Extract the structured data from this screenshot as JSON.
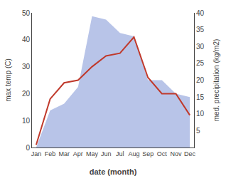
{
  "chart_data": {
    "type": "line",
    "xlabel": "date (month)",
    "ylabel": "max temp (C)",
    "y2label": "med. precipitation (kg/m2)",
    "categories": [
      "Jan",
      "Feb",
      "Mar",
      "Apr",
      "May",
      "Jun",
      "Jul",
      "Aug",
      "Sep",
      "Oct",
      "Nov",
      "Dec"
    ],
    "series": [
      {
        "type": "area",
        "axis": "y2",
        "color": "#b8c4e8",
        "values": [
          0,
          11,
          13,
          18,
          39,
          38,
          34,
          33,
          20,
          20,
          16,
          15
        ]
      },
      {
        "type": "line",
        "color": "#c0392b",
        "values": [
          1,
          18,
          24,
          25,
          30,
          34,
          35,
          41,
          26,
          20,
          20,
          12
        ]
      }
    ],
    "ylim": [
      0,
      50
    ],
    "yticks": [
      0,
      10,
      20,
      30,
      40,
      50
    ],
    "y2lim": [
      0,
      40
    ],
    "y2ticks": [
      5,
      10,
      15,
      20,
      25,
      30,
      35,
      40
    ],
    "grid": false
  }
}
